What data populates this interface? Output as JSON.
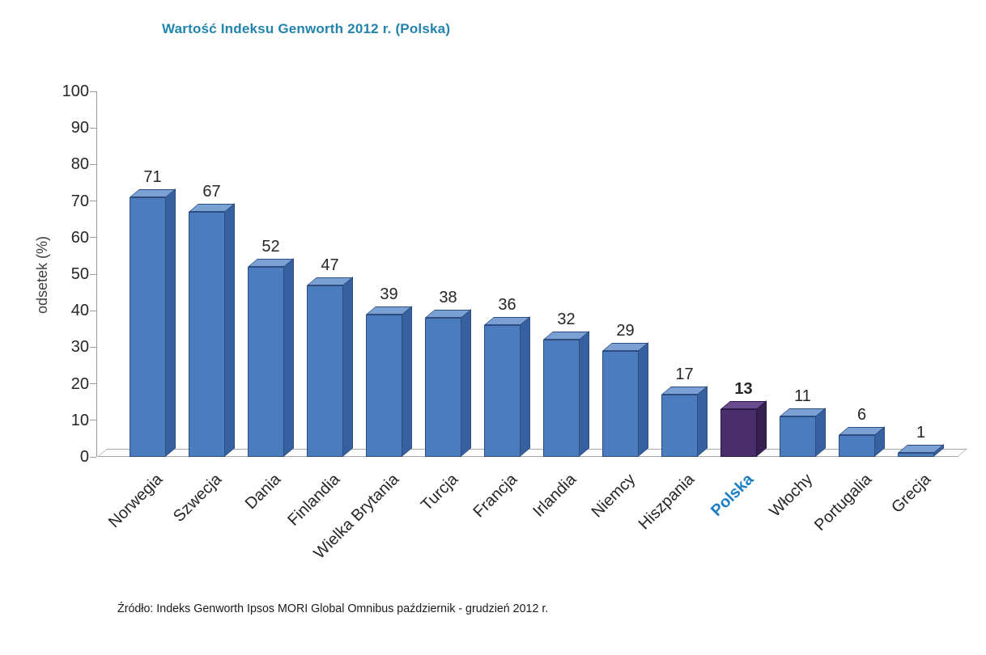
{
  "source": "Źródło: Indeks Genworth Ipsos MORI Global Omnibus październik - grudzień 2012 r.",
  "chart_data": {
    "type": "bar",
    "style": "3d-column",
    "title": "Wartość Indeksu Genworth 2012 r. (Polska)",
    "xlabel": "",
    "ylabel": "odsetek (%)",
    "ylim": [
      0,
      100
    ],
    "ytick_step": 10,
    "grid": false,
    "legend": false,
    "categories": [
      "Norwegia",
      "Szwecja",
      "Dania",
      "Finlandia",
      "Wielka Brytania",
      "Turcja",
      "Francja",
      "Irlandia",
      "Niemcy",
      "Hiszpania",
      "Polska",
      "Włochy",
      "Portugalia",
      "Grecja"
    ],
    "values": [
      71,
      67,
      52,
      47,
      39,
      38,
      36,
      32,
      29,
      17,
      13,
      11,
      6,
      1
    ],
    "highlight_category": "Polska",
    "colors": {
      "bar_front": "#4a7cbe",
      "bar_top": "#7aa0d4",
      "bar_side": "#36609f",
      "bar_edge": "#2c4d7e",
      "highlight_front": "#4a2d6b",
      "highlight_top": "#6a4c8e",
      "highlight_side": "#35204e",
      "highlight_edge": "#2a1745",
      "highlight_label": "#1b7ec2",
      "title_color": "#2283ad",
      "axis_color": "#9a9a9a",
      "text_color": "#262626"
    }
  }
}
